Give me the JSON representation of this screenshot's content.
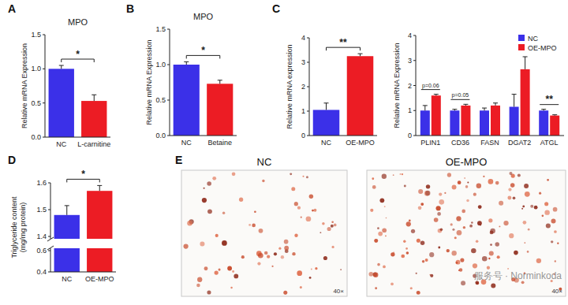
{
  "chart_data": [
    {
      "type": "bar",
      "panel_label": "A",
      "title": "MPO",
      "y_label": "Relative mRNA Expression",
      "categories": [
        "NC",
        "L-carnitine"
      ],
      "values": [
        1.0,
        0.53
      ],
      "errors": [
        0.05,
        0.09
      ],
      "colors": [
        "#3b30e8",
        "#ec1c24"
      ],
      "ylim": [
        0,
        1.5
      ],
      "yticks": [
        {
          "value": 0,
          "label": "0.0"
        },
        0.5,
        {
          "value": 1,
          "label": "1.0"
        },
        1.5
      ],
      "annotations": [
        {
          "text": "*",
          "categories": [
            "NC",
            "L-carnitine"
          ]
        }
      ]
    },
    {
      "type": "bar",
      "panel_label": "B",
      "title": "MPO",
      "y_label": "Relative mRNA Expression",
      "categories": [
        "NC",
        "Betaine"
      ],
      "values": [
        1.0,
        0.73
      ],
      "errors": [
        0.04,
        0.05
      ],
      "colors": [
        "#3b30e8",
        "#ec1c24"
      ],
      "ylim": [
        0,
        1.5
      ],
      "yticks": [
        {
          "value": 0,
          "label": "0.0"
        },
        0.5,
        {
          "value": 1,
          "label": "1.0"
        },
        1.5
      ],
      "annotations": [
        {
          "text": "*",
          "categories": [
            "NC",
            "Betaine"
          ]
        }
      ]
    },
    {
      "type": "bar",
      "panel_label": "C",
      "y_label": "Relative mRNA expression",
      "categories": [
        "NC",
        "OE-MPO"
      ],
      "values": [
        1.05,
        3.25
      ],
      "errors": [
        0.28,
        0.1
      ],
      "colors": [
        "#3b30e8",
        "#ec1c24"
      ],
      "ylim": [
        0,
        4
      ],
      "yticks": [
        0,
        1,
        2,
        3,
        4
      ],
      "annotations": [
        {
          "text": "**",
          "categories": [
            "NC",
            "OE-MPO"
          ]
        }
      ]
    },
    {
      "type": "grouped_bar",
      "y_label": "Relative mRNA Expression",
      "categories": [
        "PLIN1",
        "CD36",
        "FASN",
        "DGAT2",
        "ATGL"
      ],
      "series": [
        {
          "name": "NC",
          "color": "#3b30e8",
          "values": [
            1.0,
            1.0,
            1.0,
            1.15,
            1.0
          ],
          "errors": [
            0.2,
            0.05,
            0.1,
            0.5,
            0.05
          ]
        },
        {
          "name": "OE-MPO",
          "color": "#ec1c24",
          "values": [
            1.6,
            1.2,
            1.2,
            2.65,
            0.8
          ],
          "errors": [
            0.05,
            0.05,
            0.1,
            0.5,
            0.03
          ]
        }
      ],
      "legend": "upper right",
      "ylim": [
        0,
        4
      ],
      "yticks": [
        0,
        1,
        2,
        3,
        4
      ],
      "annotations": [
        {
          "text": "p=0.06",
          "category": "PLIN1"
        },
        {
          "text": "p=0.05",
          "category": "CD36"
        },
        {
          "text": "**",
          "category": "ATGL"
        }
      ]
    },
    {
      "type": "bar",
      "panel_label": "D",
      "y_label": [
        "Triglyceride content",
        "(mg/mg protein)"
      ],
      "categories": [
        "NC",
        "OE-MPO"
      ],
      "values": [
        1.48,
        1.57
      ],
      "errors": [
        0.035,
        0.02
      ],
      "colors": [
        "#3b30e8",
        "#ec1c24"
      ],
      "ylim": [
        0.4,
        1.6
      ],
      "y_break": [
        0.6,
        1.4
      ],
      "yticks": [
        0.4,
        0.6,
        1.4,
        1.5,
        1.6
      ],
      "annotations": [
        {
          "text": "*",
          "categories": [
            "NC",
            "OE-MPO"
          ]
        }
      ]
    }
  ],
  "image_panel": {
    "panel_label": "E",
    "images": [
      {
        "title": "NC",
        "magnification": "40×"
      },
      {
        "title": "OE-MPO",
        "magnification": "40×"
      }
    ]
  },
  "watermark": "服务号 · Norminkoda"
}
